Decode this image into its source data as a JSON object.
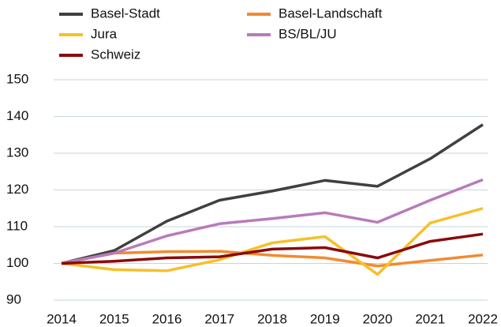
{
  "chart_data": {
    "type": "line",
    "categories": [
      "2014",
      "2015",
      "2016",
      "2017",
      "2018",
      "2019",
      "2020",
      "2021",
      "2022"
    ],
    "series": [
      {
        "name": "Basel-Stadt",
        "color": "#404040",
        "values": [
          100,
          103.5,
          111.5,
          117.2,
          119.7,
          122.6,
          121,
          128.5,
          137.8
        ]
      },
      {
        "name": "Basel-Landschaft",
        "color": "#f28a30",
        "values": [
          100,
          102.8,
          103.2,
          103.3,
          102.2,
          101.5,
          99.3,
          100.8,
          102.3
        ]
      },
      {
        "name": "Jura",
        "color": "#f7bf2a",
        "values": [
          100,
          98.3,
          98,
          101,
          105.6,
          107.3,
          97,
          111,
          115
        ]
      },
      {
        "name": "BS/BL/JU",
        "color": "#b87bbb",
        "values": [
          100,
          102.8,
          107.5,
          110.8,
          112.2,
          113.8,
          111.2,
          117.2,
          122.8
        ]
      },
      {
        "name": "Schweiz",
        "color": "#8b0a0a",
        "values": [
          100,
          100.6,
          101.5,
          101.8,
          103.9,
          104.3,
          101.5,
          106,
          108
        ]
      }
    ],
    "ylim": [
      90,
      150
    ],
    "yticks": [
      90,
      100,
      110,
      120,
      130,
      140,
      150
    ],
    "grid": true
  }
}
